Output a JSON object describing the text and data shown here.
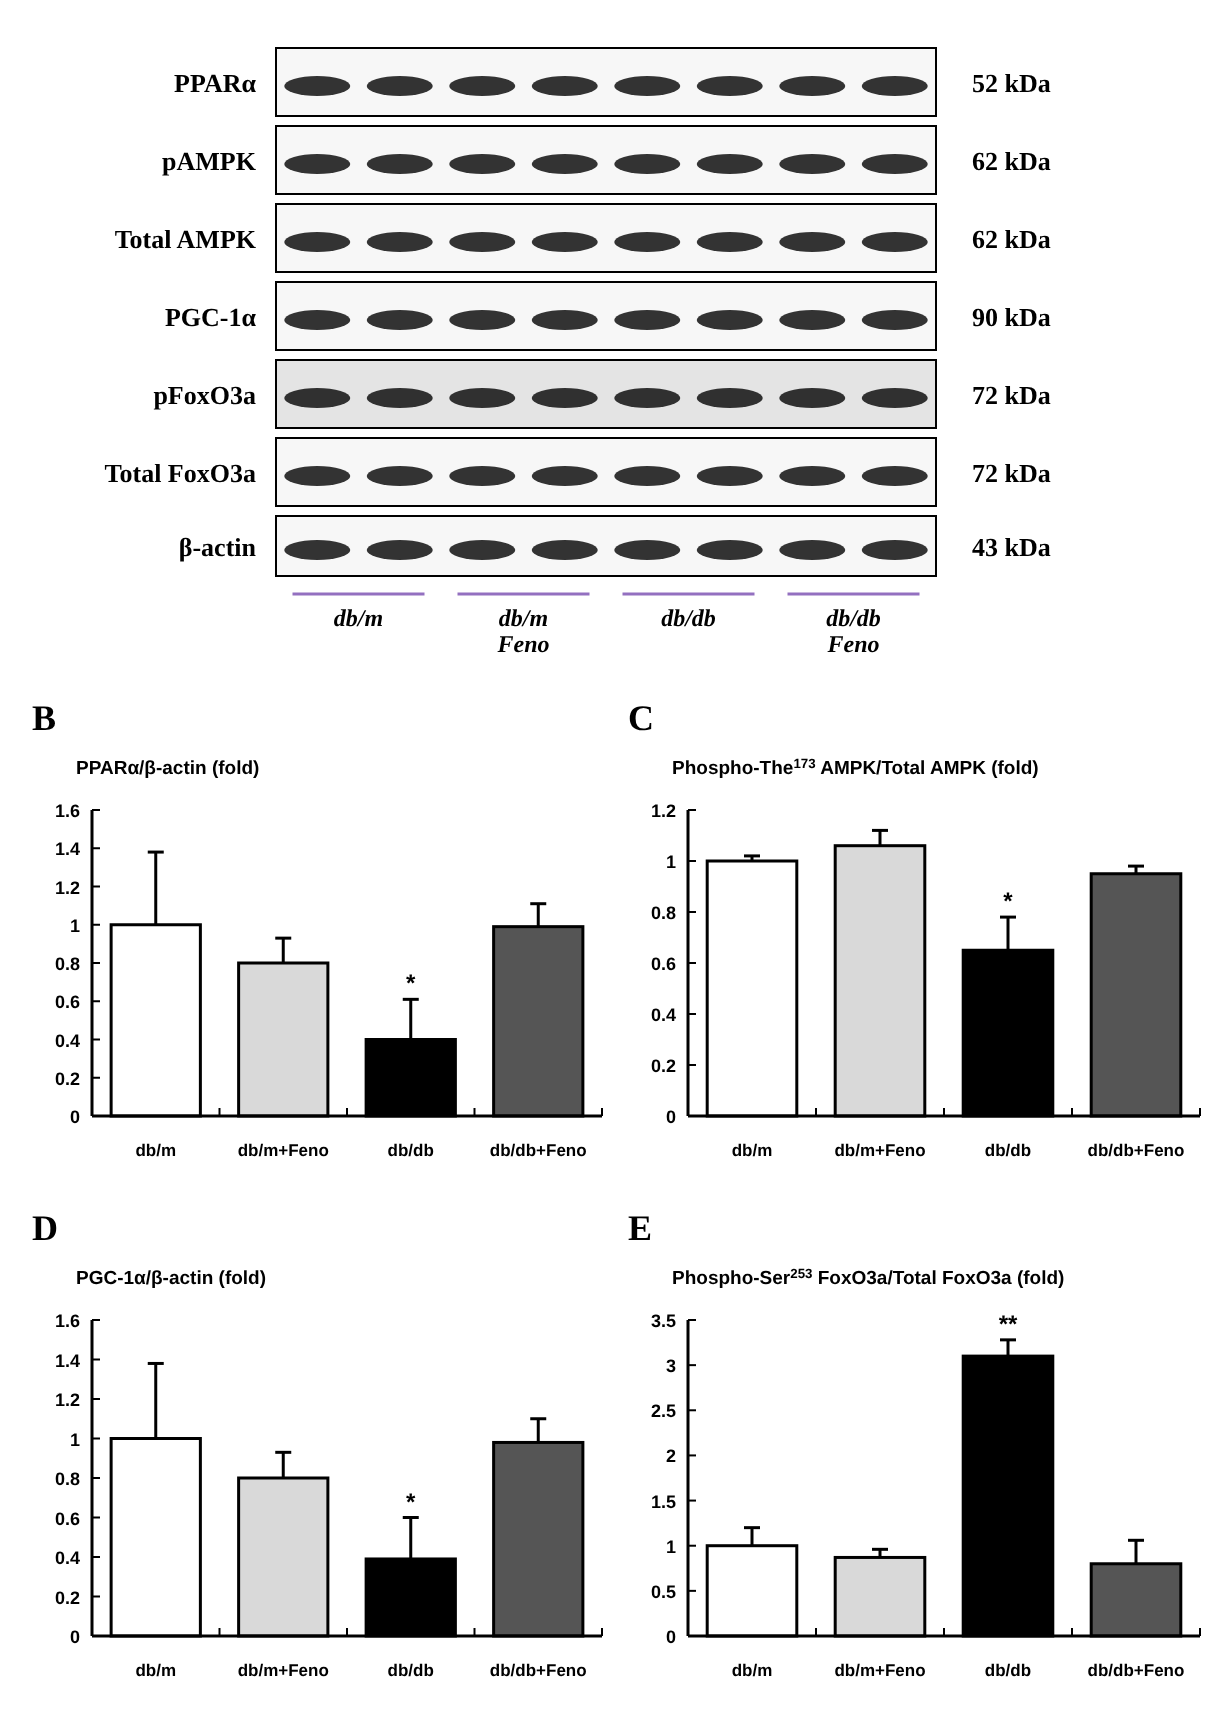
{
  "chart_data": [
    {
      "type": "other",
      "y_categories": [
        "PPARα",
        "pAMPK",
        "Total AMPK",
        "PGC-1α",
        "pFoxO3a",
        "Total FoxO3a",
        "β-actin"
      ],
      "y2_categories": [
        "52 kDa",
        "62 kDa",
        "62 kDa",
        "90 kDa",
        "72 kDa",
        "72 kDa",
        "43 kDa"
      ],
      "categories": [
        "db/m",
        "db/m\nFeno",
        "db/db",
        "db/db\nFeno"
      ]
    },
    {
      "type": "bar",
      "title": "B",
      "ylabel": "PPARα/β-actin (fold)",
      "categories": [
        "db/m",
        "db/m+Feno",
        "db/db",
        "db/db+Feno"
      ],
      "values": [
        1.0,
        0.8,
        0.4,
        0.99
      ],
      "colors": [
        "#ffffff",
        "#d9d9d9",
        "#000000",
        "#555555"
      ],
      "errors": [
        [
          1.0,
          1.38
        ],
        [
          0.8,
          0.93
        ],
        [
          0.4,
          0.61
        ],
        [
          0.99,
          1.11
        ]
      ],
      "ylim": [
        0,
        1.6
      ],
      "yticks": [
        0,
        0.2,
        0.4,
        0.6,
        0.8,
        1,
        1.2,
        1.4,
        1.6
      ],
      "annotations": [
        {
          "text": "*",
          "x": "db/db",
          "y": 0.61
        }
      ]
    },
    {
      "type": "bar",
      "title": "C",
      "ylabel": "Phospho-The$^{173}$ AMPK/Total AMPK (fold)",
      "categories": [
        "db/m",
        "db/m+Feno",
        "db/db",
        "db/db+Feno"
      ],
      "values": [
        1.0,
        1.06,
        0.65,
        0.95
      ],
      "colors": [
        "#ffffff",
        "#d9d9d9",
        "#000000",
        "#555555"
      ],
      "errors": [
        [
          1.0,
          1.02
        ],
        [
          1.06,
          1.12
        ],
        [
          0.65,
          0.78
        ],
        [
          0.95,
          0.98
        ]
      ],
      "ylim": [
        0,
        1.2
      ],
      "yticks": [
        0,
        0.2,
        0.4,
        0.6,
        0.8,
        1,
        1.2
      ],
      "annotations": [
        {
          "text": "*",
          "x": "db/db",
          "y": 0.78
        }
      ]
    },
    {
      "type": "bar",
      "title": "D",
      "ylabel": "PGC-1α/β-actin (fold)",
      "categories": [
        "db/m",
        "db/m+Feno",
        "db/db",
        "db/db+Feno"
      ],
      "values": [
        1.0,
        0.8,
        0.39,
        0.98
      ],
      "colors": [
        "#ffffff",
        "#d9d9d9",
        "#000000",
        "#555555"
      ],
      "errors": [
        [
          1.0,
          1.38
        ],
        [
          0.8,
          0.93
        ],
        [
          0.39,
          0.6
        ],
        [
          0.98,
          1.1
        ]
      ],
      "ylim": [
        0,
        1.6
      ],
      "yticks": [
        0,
        0.2,
        0.4,
        0.6,
        0.8,
        1,
        1.2,
        1.4,
        1.6
      ],
      "annotations": [
        {
          "text": "*",
          "x": "db/db",
          "y": 0.6
        }
      ]
    },
    {
      "type": "bar",
      "title": "E",
      "ylabel": "Phospho-Ser$^{253}$ FoxO3a/Total FoxO3a (fold)",
      "categories": [
        "db/m",
        "db/m+Feno",
        "db/db",
        "db/db+Feno"
      ],
      "values": [
        1.0,
        0.87,
        3.1,
        0.8
      ],
      "colors": [
        "#ffffff",
        "#d9d9d9",
        "#000000",
        "#555555"
      ],
      "errors": [
        [
          1.0,
          1.2
        ],
        [
          0.87,
          0.96
        ],
        [
          3.1,
          3.28
        ],
        [
          0.8,
          1.06
        ]
      ],
      "ylim": [
        0,
        3.5
      ],
      "yticks": [
        0,
        0.5,
        1,
        1.5,
        2,
        2.5,
        3,
        3.5
      ],
      "annotations": [
        {
          "text": "**",
          "x": "db/db",
          "y": 3.28
        }
      ]
    }
  ]
}
